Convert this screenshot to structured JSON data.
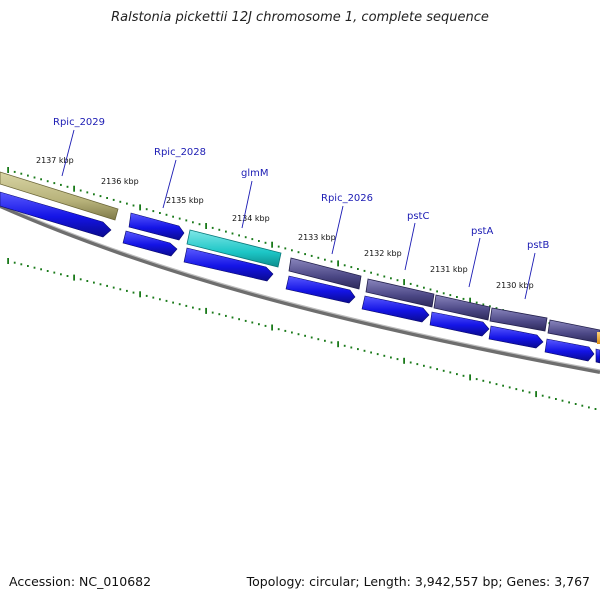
{
  "title": "Ralstonia pickettii 12J chromosome 1, complete sequence",
  "footer": {
    "accession": "Accession: NC_010682",
    "summary": "Topology: circular; Length: 3,942,557 bp; Genes: 3,767"
  },
  "colors": {
    "cds": "#1414e6",
    "gene_khaki": "#b7b27a",
    "gene_cyan": "#1cc6c6",
    "gene_slate": "#4b4785",
    "gene_orange": "#f0a020",
    "label_blue": "#1c1cb4",
    "tick_green": "#1a7a1a",
    "backbone_gray": "#8a8a8a"
  },
  "ruler_labels": [
    "2137 kbp",
    "2136 kbp",
    "2135 kbp",
    "2134 kbp",
    "2133 kbp",
    "2132 kbp",
    "2131 kbp",
    "2130 kbp"
  ],
  "genes": [
    {
      "label": "Rpic_2029"
    },
    {
      "label": "Rpic_2028"
    },
    {
      "label": "glmM"
    },
    {
      "label": "Rpic_2026"
    },
    {
      "label": "pstC"
    },
    {
      "label": "pstA"
    },
    {
      "label": "pstB"
    }
  ]
}
